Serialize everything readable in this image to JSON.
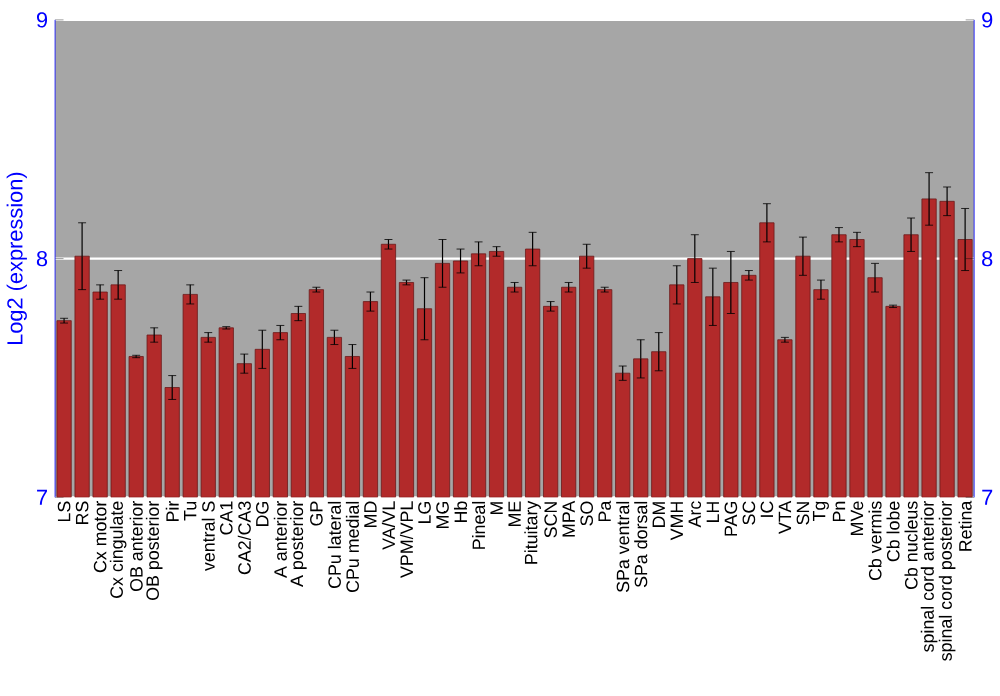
{
  "chart_data": {
    "type": "bar",
    "ylabel": "Log2 (expression)",
    "categories": [
      "LS",
      "RS",
      "Cx motor",
      "Cx cingulate",
      "OB anterior",
      "OB posterior",
      "Pir",
      "Tu",
      "ventral S",
      "CA1",
      "CA2/CA3",
      "DG",
      "A anterior",
      "A posterior",
      "GP",
      "CPu lateral",
      "CPu medial",
      "MD",
      "VA/VL",
      "VPM/VPL",
      "LG",
      "MG",
      "Hb",
      "Pineal",
      "M",
      "ME",
      "Pituitary",
      "SCN",
      "MPA",
      "SO",
      "Pa",
      "SPa ventral",
      "SPa dorsal",
      "DM",
      "VMH",
      "Arc",
      "LH",
      "PAG",
      "SC",
      "IC",
      "VTA",
      "SN",
      "Tg",
      "Pn",
      "MVe",
      "Cb vermis",
      "Cb lobe",
      "Cb nucleus",
      "spinal cord anterior",
      "spinal cord posterior",
      "Retina"
    ],
    "values": [
      7.74,
      8.01,
      7.86,
      7.89,
      7.59,
      7.68,
      7.46,
      7.85,
      7.67,
      7.71,
      7.56,
      7.62,
      7.69,
      7.77,
      7.87,
      7.67,
      7.59,
      7.82,
      8.06,
      7.9,
      7.79,
      7.98,
      7.99,
      8.02,
      8.03,
      7.88,
      8.04,
      7.8,
      7.88,
      8.01,
      7.87,
      7.52,
      7.58,
      7.61,
      7.89,
      8.0,
      7.84,
      7.9,
      7.93,
      8.15,
      7.66,
      8.01,
      7.87,
      8.1,
      8.08,
      7.92,
      7.8,
      8.1,
      8.25,
      8.24,
      8.08
    ],
    "errors": [
      0.01,
      0.14,
      0.03,
      0.06,
      0.005,
      0.03,
      0.05,
      0.04,
      0.02,
      0.005,
      0.04,
      0.08,
      0.03,
      0.03,
      0.01,
      0.03,
      0.05,
      0.04,
      0.02,
      0.01,
      0.13,
      0.1,
      0.05,
      0.05,
      0.02,
      0.02,
      0.07,
      0.02,
      0.02,
      0.05,
      0.01,
      0.03,
      0.08,
      0.08,
      0.08,
      0.1,
      0.12,
      0.13,
      0.02,
      0.08,
      0.01,
      0.08,
      0.04,
      0.03,
      0.03,
      0.06,
      0.005,
      0.07,
      0.11,
      0.06,
      0.13
    ],
    "color": "#b22a2a",
    "ylim": [
      7,
      9
    ],
    "yticks": [
      7,
      8,
      9
    ],
    "y2lim": [
      7,
      9
    ],
    "y2ticks": [
      7,
      8,
      9
    ],
    "grid": "y"
  }
}
